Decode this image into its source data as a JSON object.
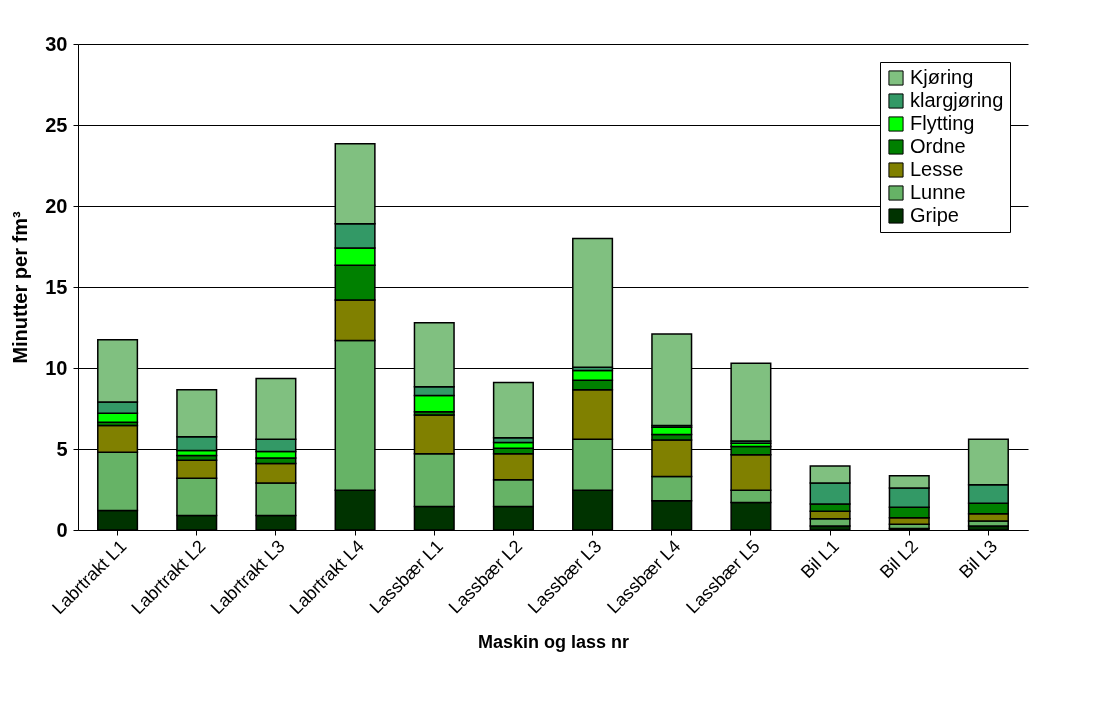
{
  "chart_data": {
    "type": "bar",
    "stacked": true,
    "xlabel": "Maskin og lass nr",
    "ylabel": "Minutter per fm³",
    "categories": [
      "Labrtrakt L1",
      "Labrtrakt L2",
      "Labrtrakt L3",
      "Labrtrakt L4",
      "Lassbær L1",
      "Lassbær L2",
      "Lassbær L3",
      "Lassbær L4",
      "Lassbær L5",
      "Bil L1",
      "Bil L2",
      "Bil L3"
    ],
    "series": [
      {
        "name": "Gripe",
        "color": "#003300",
        "values": [
          1.2,
          0.9,
          0.9,
          2.45,
          1.45,
          1.45,
          2.45,
          1.8,
          1.7,
          0.25,
          0.1,
          0.25
        ]
      },
      {
        "name": "Lunne",
        "color": "#66b366",
        "values": [
          3.6,
          2.3,
          2.0,
          9.25,
          3.25,
          1.65,
          3.15,
          1.5,
          0.75,
          0.45,
          0.25,
          0.3
        ]
      },
      {
        "name": "Lesse",
        "color": "#808000",
        "values": [
          1.65,
          1.1,
          1.2,
          2.5,
          2.4,
          1.6,
          3.05,
          2.25,
          2.2,
          0.45,
          0.4,
          0.45
        ]
      },
      {
        "name": "Ordne",
        "color": "#008000",
        "values": [
          0.2,
          0.3,
          0.35,
          2.15,
          0.2,
          0.35,
          0.6,
          0.35,
          0.5,
          0.45,
          0.65,
          0.65
        ]
      },
      {
        "name": "Flytting",
        "color": "#00ff00",
        "values": [
          0.55,
          0.3,
          0.4,
          1.05,
          1.0,
          0.35,
          0.6,
          0.45,
          0.2,
          null,
          null,
          null
        ]
      },
      {
        "name": "klargjøring",
        "color": "#339966",
        "values": [
          0.7,
          0.85,
          0.75,
          1.5,
          0.55,
          0.3,
          0.2,
          0.1,
          0.15,
          1.3,
          1.2,
          1.15
        ]
      },
      {
        "name": "Kjøring",
        "color": "#80c080",
        "values": [
          3.85,
          2.9,
          3.75,
          4.95,
          3.95,
          3.4,
          7.95,
          5.65,
          4.8,
          1.05,
          0.75,
          2.8
        ]
      }
    ],
    "ylim": [
      0,
      30
    ],
    "yticks": [
      0,
      5,
      10,
      15,
      20,
      25,
      30
    ],
    "grid": "y",
    "legend": "top right"
  }
}
